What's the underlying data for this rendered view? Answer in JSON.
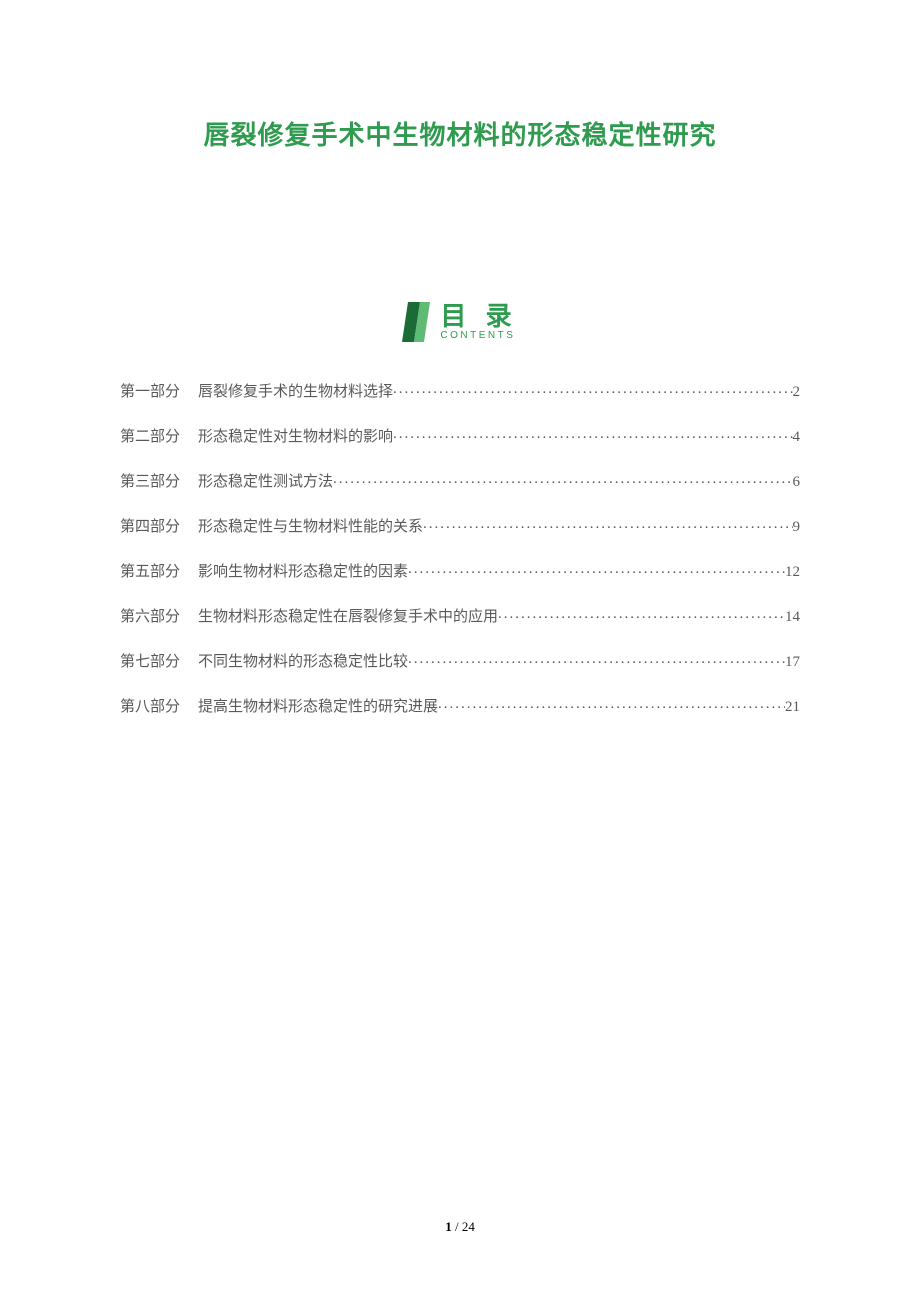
{
  "colors": {
    "title": "#2e9b4f",
    "toc_heading": "#2e9b4f",
    "toc_subtitle": "#2e9b4f",
    "body_text": "#595959",
    "footer_text": "#000000",
    "icon_dark": "#1a6b36",
    "icon_light": "#5fbb73"
  },
  "title": "唇裂修复手术中生物材料的形态稳定性研究",
  "toc_heading_cn": "目 录",
  "toc_heading_en": "CONTENTS",
  "toc": [
    {
      "part": "第一部分",
      "title": "唇裂修复手术的生物材料选择",
      "page": "2"
    },
    {
      "part": "第二部分",
      "title": "形态稳定性对生物材料的影响",
      "page": "4"
    },
    {
      "part": "第三部分",
      "title": "形态稳定性测试方法",
      "page": "6"
    },
    {
      "part": "第四部分",
      "title": "形态稳定性与生物材料性能的关系",
      "page": "9"
    },
    {
      "part": "第五部分",
      "title": "影响生物材料形态稳定性的因素",
      "page": "12"
    },
    {
      "part": "第六部分",
      "title": "生物材料形态稳定性在唇裂修复手术中的应用",
      "page": "14"
    },
    {
      "part": "第七部分",
      "title": "不同生物材料的形态稳定性比较",
      "page": "17"
    },
    {
      "part": "第八部分",
      "title": "提高生物材料形态稳定性的研究进展",
      "page": "21"
    }
  ],
  "footer": {
    "current": "1",
    "sep": " / ",
    "total": "24"
  }
}
